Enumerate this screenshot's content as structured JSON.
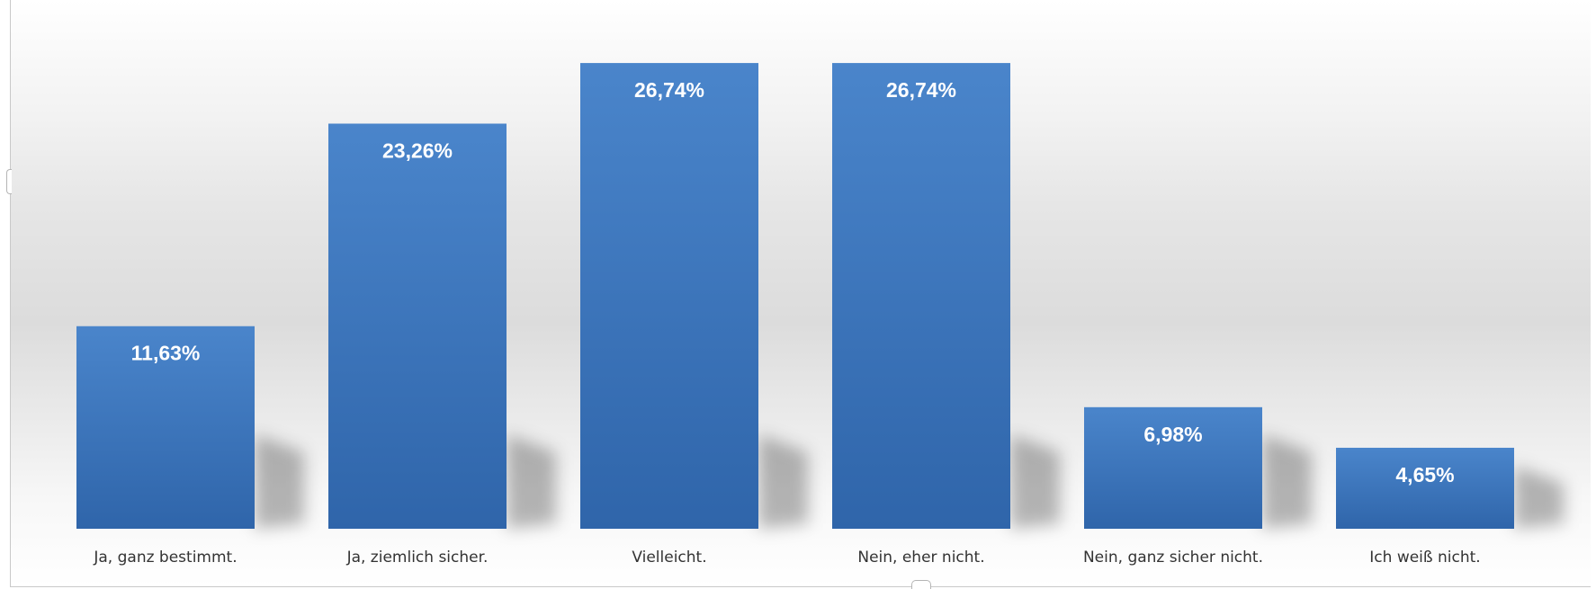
{
  "chart_data": {
    "type": "bar",
    "categories": [
      "Ja, ganz bestimmt.",
      "Ja, ziemlich sicher.",
      "Vielleicht.",
      "Nein, eher nicht.",
      "Nein, ganz sicher nicht.",
      "Ich weiß nicht."
    ],
    "values": [
      11.63,
      23.26,
      26.74,
      26.74,
      6.98,
      4.65
    ],
    "data_labels": [
      "11,63%",
      "23,26%",
      "26,74%",
      "26,74%",
      "6,98%",
      "4,65%"
    ],
    "title": "",
    "xlabel": "",
    "ylabel": "",
    "ylim": [
      0,
      28.5
    ],
    "grid": false,
    "bar_color": "#3d78bd",
    "label_color": "#ffffff"
  }
}
